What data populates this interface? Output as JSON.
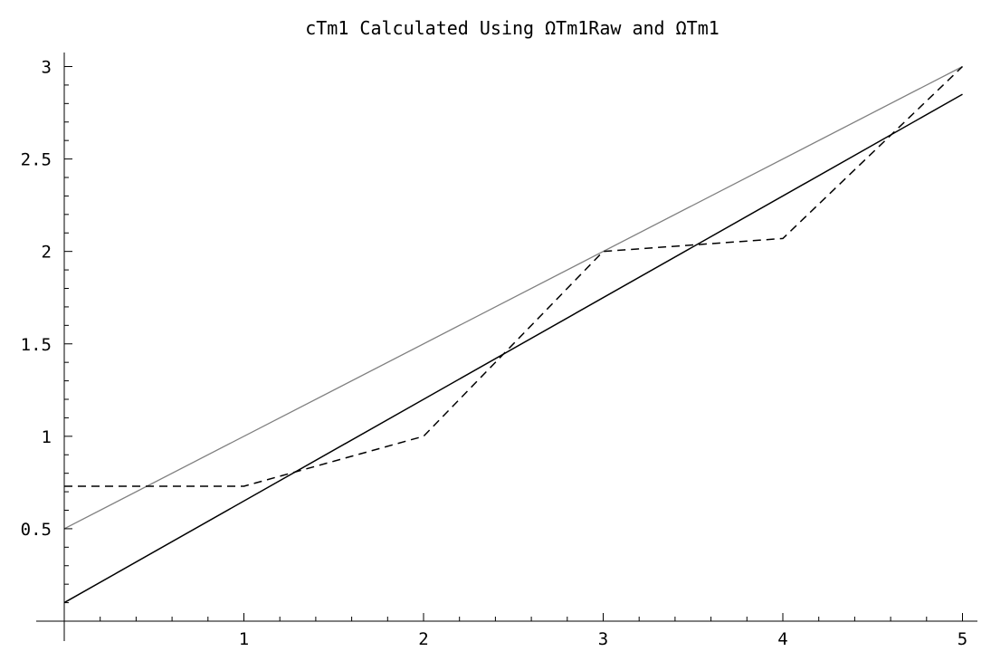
{
  "chart_data": {
    "type": "line",
    "title": "cTm1 Calculated Using ΩTm1Raw and ΩTm1",
    "xlabel": "",
    "ylabel": "",
    "xlim": [
      0,
      5
    ],
    "ylim": [
      0,
      3
    ],
    "grid": false,
    "x_ticks": [
      1,
      2,
      3,
      4,
      5
    ],
    "x_tick_labels": [
      "1",
      "2",
      "3",
      "4",
      "5"
    ],
    "y_ticks": [
      0.5,
      1,
      1.5,
      2,
      2.5,
      3
    ],
    "y_tick_labels": [
      "0.5",
      "1",
      "1.5",
      "2",
      "2.5",
      "3"
    ],
    "series": [
      {
        "x": [
          0,
          5
        ],
        "y": [
          0.5,
          3.0
        ],
        "color": "#808080",
        "dash": "solid"
      },
      {
        "x": [
          0,
          5
        ],
        "y": [
          0.1,
          2.85
        ],
        "color": "#000000",
        "dash": "solid"
      },
      {
        "x": [
          0,
          1,
          2,
          3,
          4,
          5
        ],
        "y": [
          0.73,
          0.73,
          1.0,
          2.0,
          2.07,
          3.0
        ],
        "color": "#000000",
        "dash": "dashed"
      }
    ]
  }
}
